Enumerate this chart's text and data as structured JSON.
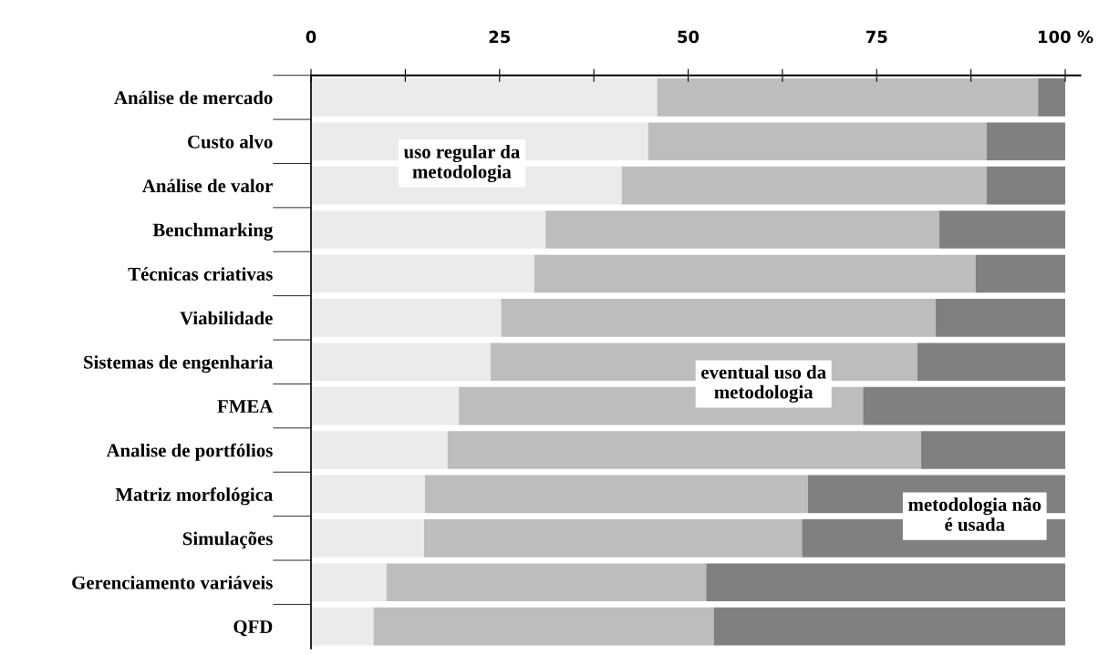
{
  "chart_data": {
    "type": "bar",
    "orientation": "horizontal",
    "stacked": true,
    "categories": [
      "Análise de mercado",
      "Custo alvo",
      "Análise de valor",
      "Benchmarking",
      "Técnicas criativas",
      "Viabilidade",
      "Sistemas de engenharia",
      "FMEA",
      "Analise de portfólios",
      "Matriz morfológica",
      "Simulações",
      "Gerenciamento variáveis",
      "QFD"
    ],
    "series": [
      {
        "name": "uso regular da metodologia",
        "color": "#ebebeb",
        "values": [
          45.9,
          44.7,
          41.2,
          31.1,
          29.6,
          25.2,
          23.8,
          19.6,
          18.1,
          15.1,
          15.0,
          10.0,
          8.3
        ]
      },
      {
        "name": "eventual uso da metodologia",
        "color": "#bdbdbd",
        "values": [
          50.5,
          44.9,
          48.4,
          52.2,
          58.5,
          57.6,
          56.6,
          53.6,
          62.8,
          50.8,
          50.1,
          42.4,
          45.1
        ]
      },
      {
        "name": "metodologia não é usada",
        "color": "#808080",
        "values": [
          3.6,
          10.4,
          10.4,
          16.7,
          11.9,
          17.2,
          19.6,
          26.8,
          19.1,
          34.1,
          34.9,
          47.6,
          46.6
        ]
      }
    ],
    "xlim": [
      0,
      102
    ],
    "xticks": [
      0,
      {
        "value": 12.5,
        "label": null
      },
      25,
      {
        "value": 37.5,
        "label": null
      },
      50,
      {
        "value": 62.5,
        "label": null
      },
      75,
      {
        "value": 87.5,
        "label": null
      },
      {
        "value": 100,
        "label": "100 %"
      }
    ],
    "grid": false,
    "legend": false
  }
}
